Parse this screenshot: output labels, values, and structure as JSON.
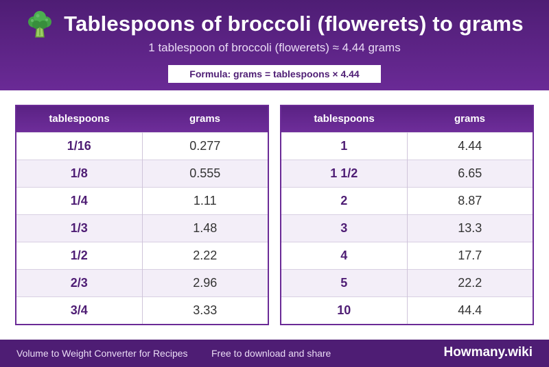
{
  "header": {
    "icon": "broccoli-icon",
    "title": "Tablespoons of broccoli (flowerets) to grams",
    "subtitle": "1 tablespoon of broccoli (flowerets) ≈ 4.44 grams",
    "formula": "Formula: grams = tablespoons × 4.44"
  },
  "tables": [
    {
      "headers": [
        "tablespoons",
        "grams"
      ],
      "rows": [
        [
          "1/16",
          "0.277"
        ],
        [
          "1/8",
          "0.555"
        ],
        [
          "1/4",
          "1.11"
        ],
        [
          "1/3",
          "1.48"
        ],
        [
          "1/2",
          "2.22"
        ],
        [
          "2/3",
          "2.96"
        ],
        [
          "3/4",
          "3.33"
        ]
      ]
    },
    {
      "headers": [
        "tablespoons",
        "grams"
      ],
      "rows": [
        [
          "1",
          "4.44"
        ],
        [
          "1 1/2",
          "6.65"
        ],
        [
          "2",
          "8.87"
        ],
        [
          "3",
          "13.3"
        ],
        [
          "4",
          "17.7"
        ],
        [
          "5",
          "22.2"
        ],
        [
          "10",
          "44.4"
        ]
      ]
    }
  ],
  "footer": {
    "left": "Volume to Weight Converter for Recipes",
    "middle": "Free to download and share",
    "brand": "Howmany.wiki"
  },
  "colors": {
    "primary": "#4e1d74",
    "accent": "#6a2a96",
    "row_alt": "#f3eef8"
  }
}
